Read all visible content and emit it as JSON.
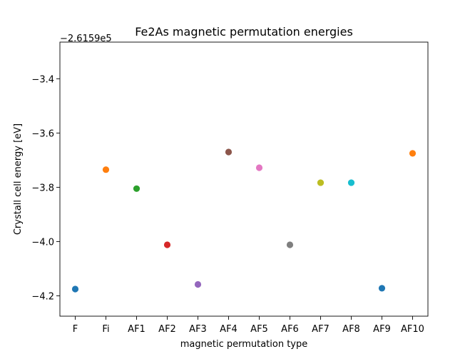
{
  "chart_data": {
    "type": "scatter",
    "title": "Fe2As magnetic permutation energies",
    "xlabel": "magnetic permutation type",
    "ylabel": "Crystall cell energy [eV]",
    "y_offset_label": "−2.6159e5",
    "categories": [
      "F",
      "Fi",
      "AF1",
      "AF2",
      "AF3",
      "AF4",
      "AF5",
      "AF6",
      "AF7",
      "AF8",
      "AF9",
      "AF10"
    ],
    "values": [
      -4.175,
      -3.735,
      -3.805,
      -4.012,
      -4.158,
      -3.67,
      -3.728,
      -4.012,
      -3.783,
      -3.783,
      -4.172,
      -3.675
    ],
    "colors": [
      "#1f77b4",
      "#ff7f0e",
      "#2ca02c",
      "#d62728",
      "#9467bd",
      "#8c564b",
      "#e377c2",
      "#7f7f7f",
      "#bcbd22",
      "#17becf",
      "#1f77b4",
      "#ff7f0e"
    ],
    "ylim": [
      -4.275,
      -3.265
    ],
    "yticks": [
      -4.2,
      -4.0,
      -3.8,
      -3.6,
      -3.4
    ],
    "ytick_labels": [
      "−4.2",
      "−4.0",
      "−3.8",
      "−3.6",
      "−3.4"
    ],
    "grid": false,
    "legend": "none"
  }
}
